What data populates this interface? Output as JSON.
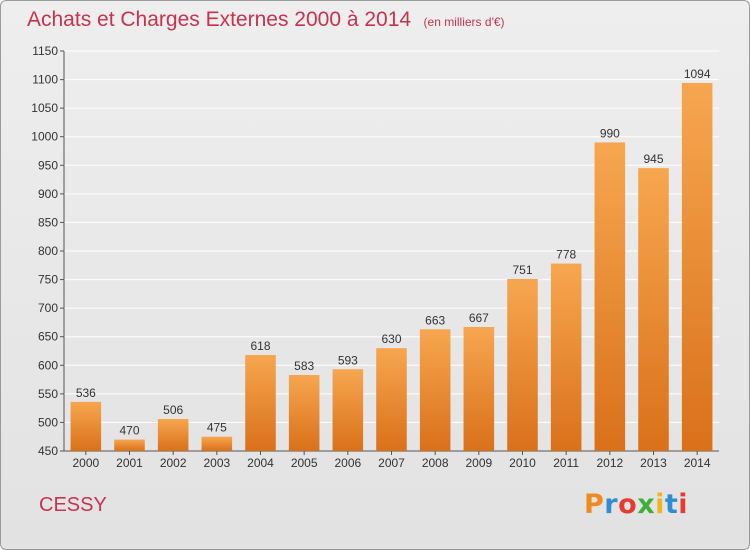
{
  "title": "Achats et Charges Externes 2000 à 2014",
  "unit": "(en milliers d'€)",
  "commune": "CESSY",
  "logo": {
    "text": "Proxiti",
    "letters": [
      {
        "ch": "P",
        "color": "#f08a1d"
      },
      {
        "ch": "r",
        "color": "#2c8fd6"
      },
      {
        "ch": "o",
        "color": "#e63a2e"
      },
      {
        "ch": "x",
        "color": "#3fae3a"
      },
      {
        "ch": "i",
        "color": "#f0b41c"
      },
      {
        "ch": "t",
        "color": "#2c8fd6"
      },
      {
        "ch": "i",
        "color": "#e63a2e"
      }
    ]
  },
  "colors": {
    "bar_light": "#f7a650",
    "bar_dark": "#d9711a",
    "title": "#c7334f",
    "grid": "#ffffff",
    "axis": "#555555"
  },
  "chart_data": {
    "type": "bar",
    "categories": [
      "2000",
      "2001",
      "2002",
      "2003",
      "2004",
      "2005",
      "2006",
      "2007",
      "2008",
      "2009",
      "2010",
      "2011",
      "2012",
      "2013",
      "2014"
    ],
    "values": [
      536,
      470,
      506,
      475,
      618,
      583,
      593,
      630,
      663,
      667,
      751,
      778,
      990,
      945,
      1094
    ],
    "ylim": [
      450,
      1150
    ],
    "yticks": [
      450,
      500,
      550,
      600,
      650,
      700,
      750,
      800,
      850,
      900,
      950,
      1000,
      1050,
      1100,
      1150
    ],
    "grid": true,
    "data_labels": true
  }
}
